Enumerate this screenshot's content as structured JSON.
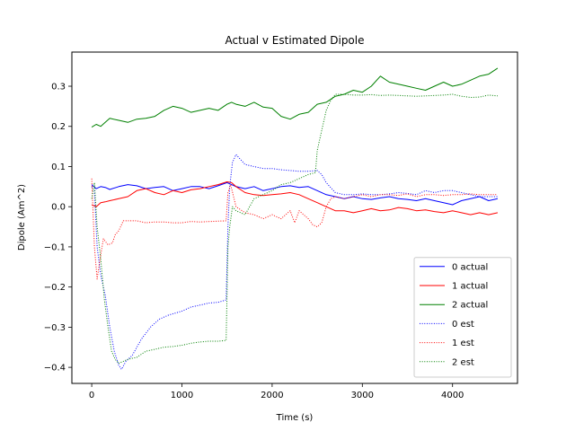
{
  "chart_data": {
    "type": "line",
    "title": "Actual v Estimated Dipole",
    "xlabel": "Time (s)",
    "ylabel": "Dipole (Am^2)",
    "xlim": [
      -220,
      4720
    ],
    "ylim": [
      -0.44,
      0.385
    ],
    "x_ticks": [
      0,
      1000,
      2000,
      3000,
      4000
    ],
    "y_ticks": [
      -0.4,
      -0.3,
      -0.2,
      -0.1,
      0.0,
      0.1,
      0.2,
      0.3
    ],
    "x_tick_labels": [
      "0",
      "1000",
      "2000",
      "3000",
      "4000"
    ],
    "y_tick_labels": [
      "−0.4",
      "−0.3",
      "−0.2",
      "−0.1",
      "0.0",
      "0.1",
      "0.2",
      "0.3"
    ],
    "grid": false,
    "legend_position": "lower-right",
    "series": [
      {
        "name": "0 actual",
        "color": "#0000ff",
        "style": "solid",
        "x": [
          0,
          50,
          100,
          150,
          200,
          300,
          400,
          500,
          600,
          700,
          800,
          900,
          1000,
          1100,
          1200,
          1300,
          1400,
          1500,
          1550,
          1600,
          1700,
          1800,
          1900,
          2000,
          2100,
          2200,
          2300,
          2400,
          2500,
          2600,
          2700,
          2800,
          2900,
          3000,
          3100,
          3200,
          3300,
          3400,
          3500,
          3600,
          3700,
          3800,
          3900,
          4000,
          4100,
          4200,
          4300,
          4400,
          4500
        ],
        "y": [
          0.055,
          0.045,
          0.05,
          0.048,
          0.043,
          0.05,
          0.055,
          0.052,
          0.045,
          0.048,
          0.05,
          0.04,
          0.045,
          0.05,
          0.05,
          0.045,
          0.052,
          0.06,
          0.055,
          0.05,
          0.045,
          0.05,
          0.04,
          0.045,
          0.05,
          0.052,
          0.048,
          0.05,
          0.04,
          0.03,
          0.025,
          0.02,
          0.025,
          0.02,
          0.018,
          0.022,
          0.025,
          0.02,
          0.018,
          0.015,
          0.02,
          0.015,
          0.01,
          0.005,
          0.015,
          0.02,
          0.025,
          0.015,
          0.02
        ]
      },
      {
        "name": "1 actual",
        "color": "#ff0000",
        "style": "solid",
        "x": [
          0,
          50,
          100,
          150,
          200,
          300,
          400,
          500,
          600,
          700,
          800,
          900,
          1000,
          1100,
          1200,
          1300,
          1400,
          1500,
          1550,
          1600,
          1700,
          1800,
          1900,
          2000,
          2100,
          2200,
          2300,
          2400,
          2500,
          2600,
          2700,
          2800,
          2900,
          3000,
          3100,
          3200,
          3300,
          3400,
          3500,
          3600,
          3700,
          3800,
          3900,
          4000,
          4100,
          4200,
          4300,
          4400,
          4500
        ],
        "y": [
          0.005,
          0.0,
          0.01,
          0.012,
          0.015,
          0.02,
          0.025,
          0.04,
          0.045,
          0.035,
          0.03,
          0.04,
          0.035,
          0.042,
          0.045,
          0.05,
          0.055,
          0.062,
          0.06,
          0.05,
          0.035,
          0.03,
          0.028,
          0.03,
          0.032,
          0.035,
          0.03,
          0.02,
          0.01,
          0.0,
          -0.01,
          -0.01,
          -0.015,
          -0.01,
          -0.005,
          -0.01,
          -0.008,
          -0.002,
          -0.005,
          -0.01,
          -0.008,
          -0.012,
          -0.015,
          -0.01,
          -0.015,
          -0.02,
          -0.015,
          -0.02,
          -0.015
        ]
      },
      {
        "name": "2 actual",
        "color": "#008000",
        "style": "solid",
        "x": [
          0,
          50,
          100,
          150,
          200,
          300,
          400,
          500,
          600,
          700,
          800,
          900,
          1000,
          1100,
          1200,
          1300,
          1400,
          1500,
          1550,
          1600,
          1700,
          1800,
          1900,
          2000,
          2100,
          2200,
          2300,
          2400,
          2500,
          2600,
          2700,
          2800,
          2900,
          3000,
          3100,
          3200,
          3300,
          3400,
          3500,
          3600,
          3700,
          3800,
          3900,
          4000,
          4100,
          4200,
          4300,
          4400,
          4500
        ],
        "y": [
          0.198,
          0.205,
          0.2,
          0.21,
          0.22,
          0.215,
          0.21,
          0.218,
          0.22,
          0.225,
          0.24,
          0.25,
          0.245,
          0.235,
          0.24,
          0.245,
          0.24,
          0.255,
          0.26,
          0.255,
          0.25,
          0.26,
          0.248,
          0.245,
          0.225,
          0.218,
          0.23,
          0.235,
          0.255,
          0.26,
          0.275,
          0.28,
          0.29,
          0.285,
          0.3,
          0.325,
          0.31,
          0.305,
          0.3,
          0.295,
          0.29,
          0.3,
          0.31,
          0.3,
          0.305,
          0.315,
          0.325,
          0.33,
          0.345
        ]
      },
      {
        "name": "0 est",
        "color": "#0000ff",
        "style": "dotted",
        "x": [
          0,
          30,
          60,
          100,
          150,
          200,
          250,
          300,
          330,
          380,
          450,
          550,
          650,
          750,
          850,
          1000,
          1100,
          1200,
          1300,
          1400,
          1490,
          1510,
          1530,
          1560,
          1600,
          1700,
          1800,
          1900,
          2000,
          2100,
          2200,
          2300,
          2400,
          2500,
          2550,
          2600,
          2700,
          2800,
          2900,
          3000,
          3100,
          3200,
          3300,
          3400,
          3500,
          3600,
          3700,
          3800,
          3900,
          4000,
          4100,
          4200,
          4300,
          4400,
          4500
        ],
        "y": [
          0.05,
          0.04,
          -0.1,
          -0.17,
          -0.22,
          -0.3,
          -0.36,
          -0.395,
          -0.405,
          -0.385,
          -0.37,
          -0.33,
          -0.3,
          -0.28,
          -0.27,
          -0.26,
          -0.25,
          -0.245,
          -0.24,
          -0.238,
          -0.232,
          -0.05,
          0.05,
          0.11,
          0.13,
          0.105,
          0.1,
          0.095,
          0.095,
          0.092,
          0.09,
          0.088,
          0.088,
          0.09,
          0.08,
          0.06,
          0.035,
          0.03,
          0.03,
          0.032,
          0.03,
          0.03,
          0.032,
          0.035,
          0.033,
          0.03,
          0.04,
          0.035,
          0.04,
          0.04,
          0.035,
          0.03,
          0.025,
          0.025,
          0.025
        ]
      },
      {
        "name": "1 est",
        "color": "#ff0000",
        "style": "dotted",
        "x": [
          0,
          30,
          60,
          100,
          130,
          180,
          230,
          260,
          300,
          350,
          400,
          500,
          600,
          700,
          800,
          900,
          1000,
          1100,
          1200,
          1300,
          1400,
          1490,
          1510,
          1540,
          1600,
          1700,
          1800,
          1900,
          2000,
          2100,
          2200,
          2250,
          2300,
          2400,
          2450,
          2500,
          2550,
          2600,
          2650,
          2700,
          2800,
          2900,
          3000,
          3100,
          3200,
          3300,
          3400,
          3500,
          3600,
          3700,
          3800,
          3900,
          4000,
          4100,
          4200,
          4300,
          4400,
          4500
        ],
        "y": [
          0.07,
          -0.1,
          -0.18,
          -0.12,
          -0.08,
          -0.095,
          -0.09,
          -0.07,
          -0.06,
          -0.035,
          -0.035,
          -0.035,
          -0.04,
          -0.038,
          -0.038,
          -0.04,
          -0.04,
          -0.037,
          -0.038,
          -0.037,
          -0.036,
          -0.035,
          0.035,
          0.055,
          0.0,
          -0.015,
          -0.02,
          -0.03,
          -0.02,
          -0.03,
          -0.01,
          -0.04,
          -0.01,
          -0.03,
          -0.045,
          -0.05,
          -0.04,
          0.0,
          0.02,
          0.025,
          0.02,
          0.025,
          0.03,
          0.025,
          0.03,
          0.03,
          0.028,
          0.032,
          0.025,
          0.03,
          0.03,
          0.028,
          0.03,
          0.03,
          0.032,
          0.03,
          0.03,
          0.03
        ]
      },
      {
        "name": "2 est",
        "color": "#008000",
        "style": "dotted",
        "x": [
          0,
          30,
          60,
          100,
          140,
          180,
          220,
          260,
          300,
          350,
          400,
          500,
          600,
          700,
          800,
          900,
          1000,
          1100,
          1200,
          1300,
          1400,
          1490,
          1510,
          1530,
          1560,
          1600,
          1700,
          1800,
          1900,
          2000,
          2100,
          2200,
          2300,
          2400,
          2480,
          2500,
          2520,
          2550,
          2600,
          2650,
          2700,
          2800,
          2900,
          3000,
          3100,
          3200,
          3300,
          3400,
          3500,
          3600,
          3700,
          3800,
          3900,
          4000,
          4100,
          4200,
          4300,
          4400,
          4500
        ],
        "y": [
          0.02,
          0.06,
          -0.05,
          -0.13,
          -0.23,
          -0.3,
          -0.36,
          -0.38,
          -0.39,
          -0.385,
          -0.38,
          -0.375,
          -0.36,
          -0.355,
          -0.35,
          -0.348,
          -0.345,
          -0.34,
          -0.337,
          -0.335,
          -0.335,
          -0.333,
          -0.1,
          -0.05,
          0.0,
          -0.01,
          -0.02,
          0.02,
          0.03,
          0.04,
          0.055,
          0.06,
          0.07,
          0.08,
          0.085,
          0.14,
          0.16,
          0.19,
          0.24,
          0.265,
          0.28,
          0.28,
          0.278,
          0.278,
          0.279,
          0.277,
          0.278,
          0.277,
          0.276,
          0.275,
          0.276,
          0.277,
          0.278,
          0.28,
          0.275,
          0.272,
          0.273,
          0.278,
          0.276
        ]
      }
    ]
  }
}
